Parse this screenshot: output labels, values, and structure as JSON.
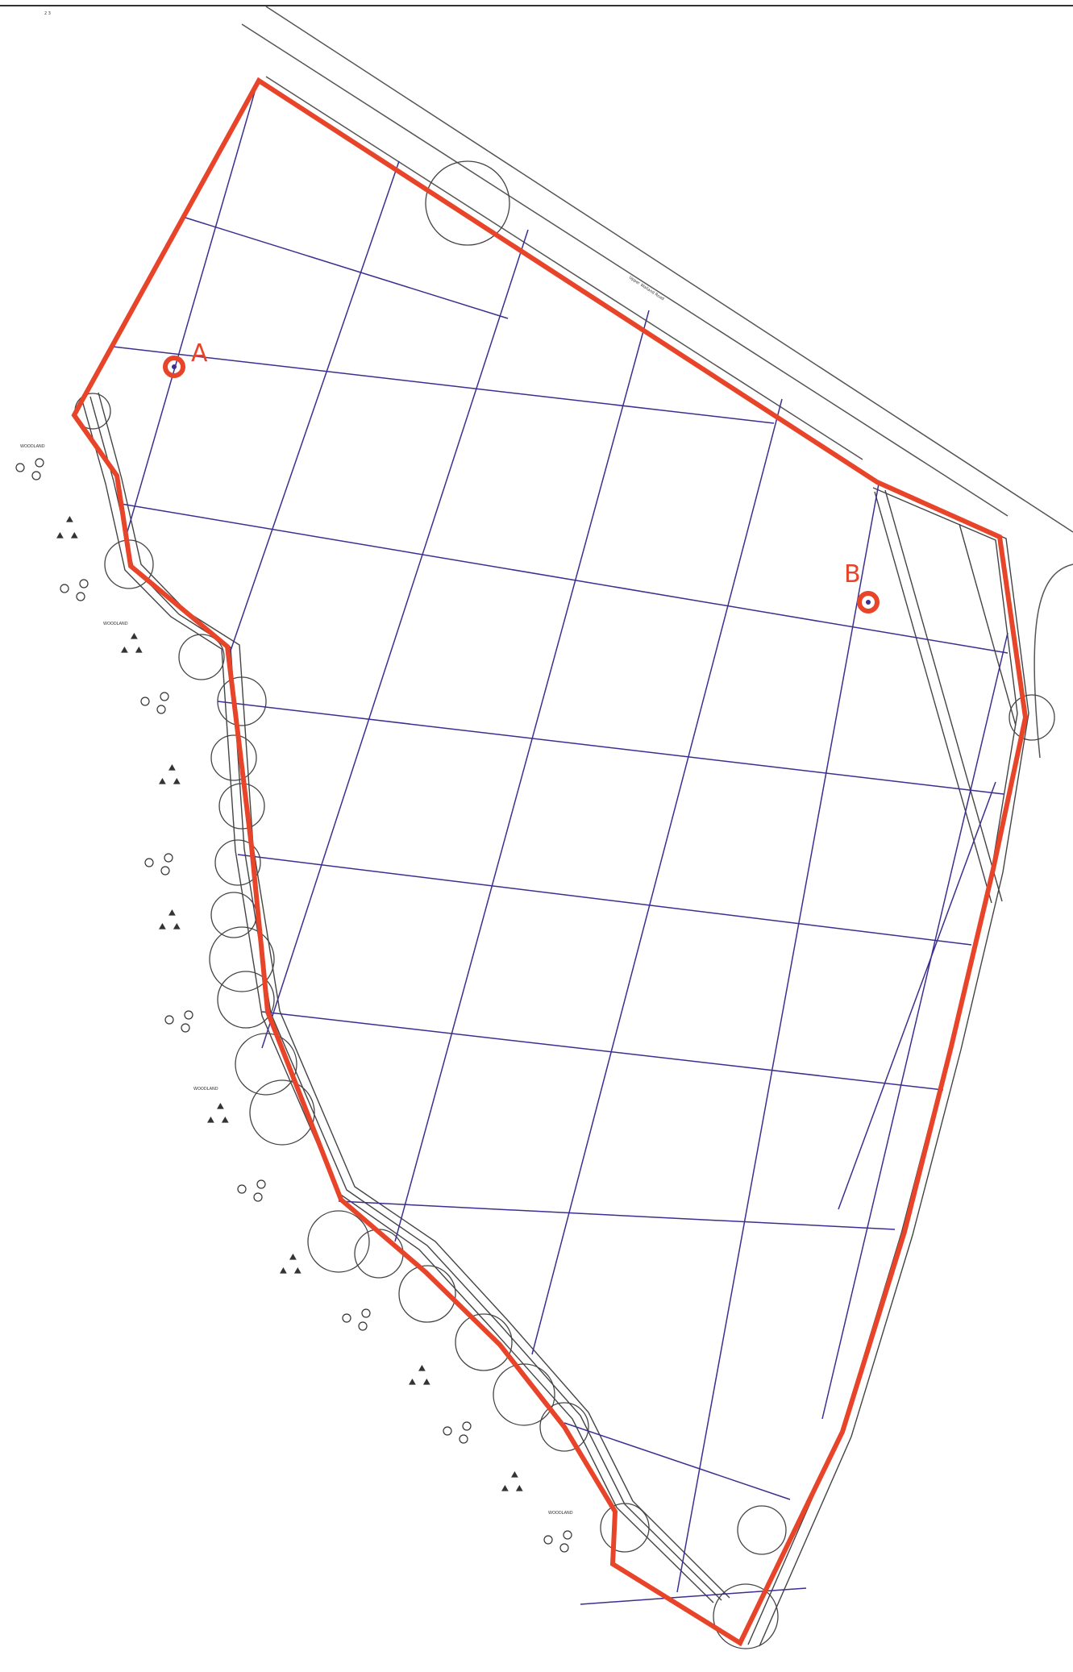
{
  "map": {
    "colors": {
      "boundary": "#e8442a",
      "grid": "#3b2f8f",
      "linework": "#444444",
      "background": "#ffffff"
    },
    "points": [
      {
        "id": "A",
        "label": "A"
      },
      {
        "id": "B",
        "label": "B"
      }
    ],
    "road_label": "Upper Walland Road",
    "woodland_label": "WOODLAND",
    "icons": [
      "tree-symbol-icon",
      "shrub-symbol-icon",
      "control-point-icon"
    ]
  }
}
